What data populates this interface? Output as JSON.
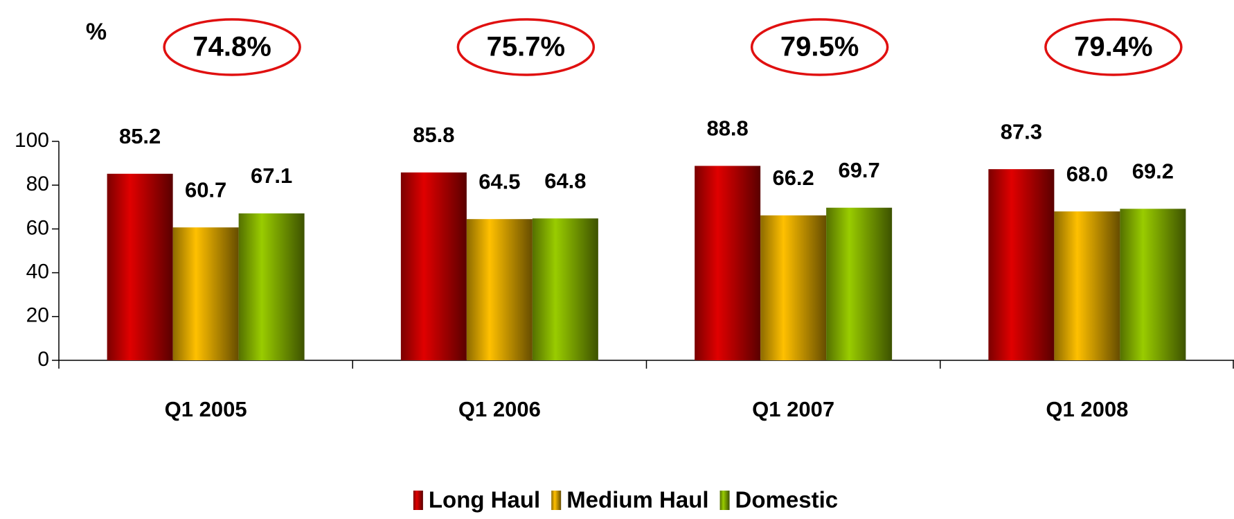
{
  "chart_data": {
    "type": "bar",
    "y_label": "%",
    "categories": [
      "Q1 2005",
      "Q1 2006",
      "Q1 2007",
      "Q1 2008"
    ],
    "series": [
      {
        "name": "Long Haul",
        "color": "#e00000",
        "values": [
          85.2,
          85.8,
          88.8,
          87.3
        ]
      },
      {
        "name": "Medium Haul",
        "color": "#ffc000",
        "values": [
          60.7,
          64.5,
          66.2,
          68.0
        ],
        "value_labels": [
          "60.7",
          "64.5",
          "66.2",
          "68.0"
        ]
      },
      {
        "name": "Domestic",
        "color": "#99cc00",
        "values": [
          67.1,
          64.8,
          69.7,
          69.2
        ]
      }
    ],
    "annotations": [
      "74.8%",
      "75.7%",
      "79.5%",
      "79.4%"
    ],
    "ylim": [
      0,
      100
    ],
    "yticks": [
      0,
      20,
      40,
      60,
      80,
      100
    ],
    "grid": false,
    "legend": "bottom"
  }
}
